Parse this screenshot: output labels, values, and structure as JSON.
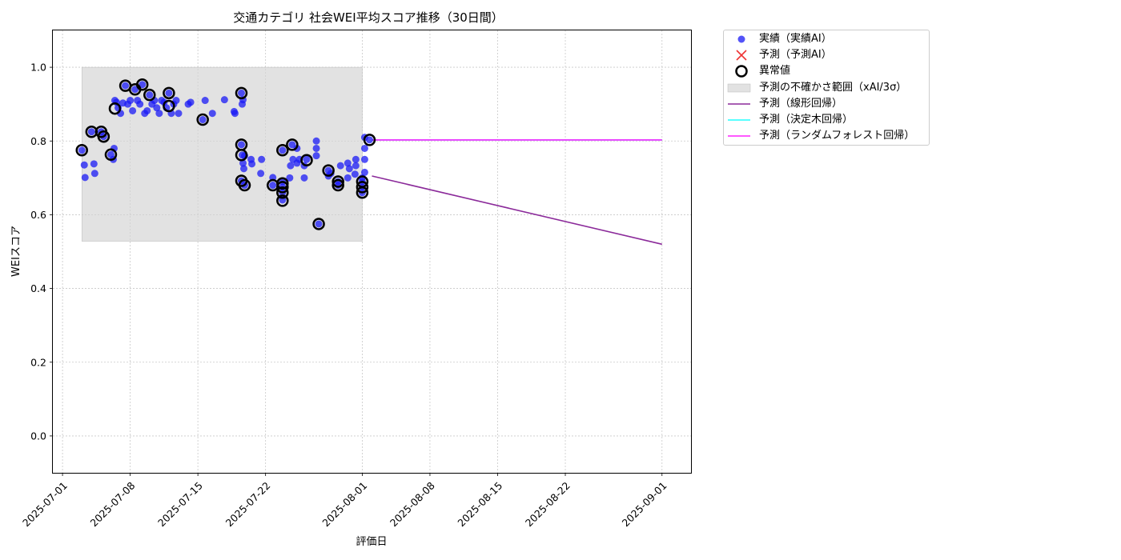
{
  "chart_data": {
    "type": "scatter",
    "title": "交通カテゴリ 社会WEI平均スコア推移（30日間）",
    "xlabel": "評価日",
    "ylabel": "WEIスコア",
    "xlim": [
      "2025-06-30",
      "2025-09-04"
    ],
    "ylim": [
      -0.1,
      1.1
    ],
    "grid": true,
    "legend_position": "outside-right-top",
    "x_ticks": [
      "2025-07-01",
      "2025-07-08",
      "2025-07-15",
      "2025-07-22",
      "2025-08-01",
      "2025-08-08",
      "2025-08-15",
      "2025-08-22",
      "2025-09-01"
    ],
    "y_ticks": [
      "0.0",
      "0.2",
      "0.4",
      "0.6",
      "0.8",
      "1.0"
    ],
    "legend": {
      "actual": "実績（実績AI）",
      "predicted": "予測（予測AI）",
      "anomaly": "異常値",
      "band": "予測の不確かさ範囲（xAI/3σ）",
      "linear": "予測（線形回帰）",
      "tree": "予測（決定木回帰）",
      "forest": "予測（ランダムフォレスト回帰）"
    },
    "colors": {
      "actual": "#1a1af5",
      "predicted": "#ee3333",
      "anomaly": "#000000",
      "band": "#d3d3d3",
      "linear": "#8b2a9a",
      "tree": "#22ffff",
      "forest": "#ff22ff"
    },
    "uncertainty_band": {
      "x_start": "2025-07-03 00:00",
      "x_end": "2025-08-01 00:00",
      "y_low": 0.528,
      "y_high": 1.0
    },
    "series": [
      {
        "key": "actual",
        "points": [
          [
            "2025-07-03 00:00",
            0.775
          ],
          [
            "2025-07-03 06:00",
            0.735
          ],
          [
            "2025-07-03 08:00",
            0.701
          ],
          [
            "2025-07-04 00:00",
            0.825
          ],
          [
            "2025-07-04 06:00",
            0.738
          ],
          [
            "2025-07-04 08:00",
            0.712
          ],
          [
            "2025-07-05 00:00",
            0.825
          ],
          [
            "2025-07-05 06:00",
            0.812
          ],
          [
            "2025-07-06 00:00",
            0.763
          ],
          [
            "2025-07-06 06:00",
            0.75
          ],
          [
            "2025-07-06 08:00",
            0.78
          ],
          [
            "2025-07-06 10:00",
            0.91
          ],
          [
            "2025-07-06 14:00",
            0.905
          ],
          [
            "2025-07-06 18:00",
            0.89
          ],
          [
            "2025-07-07 00:00",
            0.875
          ],
          [
            "2025-07-07 06:00",
            0.903
          ],
          [
            "2025-07-07 12:00",
            0.95
          ],
          [
            "2025-07-07 18:00",
            0.9
          ],
          [
            "2025-07-08 00:00",
            0.91
          ],
          [
            "2025-07-08 06:00",
            0.882
          ],
          [
            "2025-07-08 12:00",
            0.94
          ],
          [
            "2025-07-08 18:00",
            0.91
          ],
          [
            "2025-07-09 00:00",
            0.9
          ],
          [
            "2025-07-09 06:00",
            0.953
          ],
          [
            "2025-07-09 12:00",
            0.875
          ],
          [
            "2025-07-09 18:00",
            0.882
          ],
          [
            "2025-07-10 00:00",
            0.925
          ],
          [
            "2025-07-10 06:00",
            0.9
          ],
          [
            "2025-07-10 12:00",
            0.91
          ],
          [
            "2025-07-10 18:00",
            0.89
          ],
          [
            "2025-07-11 00:00",
            0.875
          ],
          [
            "2025-07-11 06:00",
            0.91
          ],
          [
            "2025-07-11 12:00",
            0.905
          ],
          [
            "2025-07-11 18:00",
            0.89
          ],
          [
            "2025-07-12 00:00",
            0.93
          ],
          [
            "2025-07-12 06:00",
            0.875
          ],
          [
            "2025-07-12 12:00",
            0.9
          ],
          [
            "2025-07-12 18:00",
            0.91
          ],
          [
            "2025-07-13 00:00",
            0.875
          ],
          [
            "2025-07-14 00:00",
            0.9
          ],
          [
            "2025-07-14 06:00",
            0.905
          ],
          [
            "2025-07-15 12:00",
            0.858
          ],
          [
            "2025-07-15 18:00",
            0.91
          ],
          [
            "2025-07-16 12:00",
            0.875
          ],
          [
            "2025-07-17 18:00",
            0.912
          ],
          [
            "2025-07-18 18:00",
            0.88
          ],
          [
            "2025-07-18 20:00",
            0.875
          ],
          [
            "2025-07-19 12:00",
            0.93
          ],
          [
            "2025-07-19 14:00",
            0.9
          ],
          [
            "2025-07-19 16:00",
            0.912
          ],
          [
            "2025-07-19 12:00",
            0.79
          ],
          [
            "2025-07-19 14:00",
            0.762
          ],
          [
            "2025-07-19 16:00",
            0.74
          ],
          [
            "2025-07-19 18:00",
            0.725
          ],
          [
            "2025-07-19 20:00",
            0.76
          ],
          [
            "2025-07-19 12:00",
            0.692
          ],
          [
            "2025-07-19 20:00",
            0.68
          ],
          [
            "2025-07-20 12:00",
            0.75
          ],
          [
            "2025-07-20 14:00",
            0.738
          ],
          [
            "2025-07-21 12:00",
            0.712
          ],
          [
            "2025-07-21 14:00",
            0.75
          ],
          [
            "2025-07-22 18:00",
            0.701
          ],
          [
            "2025-07-22 18:00",
            0.68
          ],
          [
            "2025-07-23 18:00",
            0.775
          ],
          [
            "2025-07-23 18:00",
            0.69
          ],
          [
            "2025-07-23 18:00",
            0.675
          ],
          [
            "2025-07-23 18:00",
            0.66
          ],
          [
            "2025-07-23 18:00",
            0.64
          ],
          [
            "2025-07-24 12:00",
            0.7
          ],
          [
            "2025-07-24 14:00",
            0.733
          ],
          [
            "2025-07-24 18:00",
            0.79
          ],
          [
            "2025-07-24 20:00",
            0.75
          ],
          [
            "2025-07-25 06:00",
            0.78
          ],
          [
            "2025-07-25 06:00",
            0.74
          ],
          [
            "2025-07-25 12:00",
            0.75
          ],
          [
            "2025-07-26 00:00",
            0.733
          ],
          [
            "2025-07-26 00:00",
            0.7
          ],
          [
            "2025-07-26 06:00",
            0.75
          ],
          [
            "2025-07-27 06:00",
            0.8
          ],
          [
            "2025-07-27 06:00",
            0.78
          ],
          [
            "2025-07-27 06:00",
            0.76
          ],
          [
            "2025-07-27 12:00",
            0.575
          ],
          [
            "2025-07-28 12:00",
            0.72
          ],
          [
            "2025-07-28 12:00",
            0.705
          ],
          [
            "2025-07-28 18:00",
            0.712
          ],
          [
            "2025-07-29 12:00",
            0.69
          ],
          [
            "2025-07-29 12:00",
            0.68
          ],
          [
            "2025-07-29 18:00",
            0.733
          ],
          [
            "2025-07-30 12:00",
            0.7
          ],
          [
            "2025-07-30 12:00",
            0.74
          ],
          [
            "2025-07-30 16:00",
            0.725
          ],
          [
            "2025-07-31 06:00",
            0.71
          ],
          [
            "2025-07-31 08:00",
            0.75
          ],
          [
            "2025-07-31 08:00",
            0.733
          ],
          [
            "2025-08-01 00:00",
            0.69
          ],
          [
            "2025-08-01 00:00",
            0.675
          ],
          [
            "2025-08-01 00:00",
            0.66
          ],
          [
            "2025-08-01 00:00",
            0.7
          ],
          [
            "2025-08-01 06:00",
            0.715
          ],
          [
            "2025-08-01 06:00",
            0.75
          ],
          [
            "2025-08-01 06:00",
            0.78
          ],
          [
            "2025-08-01 06:00",
            0.81
          ],
          [
            "2025-08-01 18:00",
            0.803
          ]
        ]
      },
      {
        "key": "anomaly",
        "points": [
          [
            "2025-07-03 00:00",
            0.775
          ],
          [
            "2025-07-04 00:00",
            0.825
          ],
          [
            "2025-07-05 00:00",
            0.825
          ],
          [
            "2025-07-05 06:00",
            0.812
          ],
          [
            "2025-07-06 00:00",
            0.763
          ],
          [
            "2025-07-06 10:00",
            0.888
          ],
          [
            "2025-07-07 12:00",
            0.95
          ],
          [
            "2025-07-08 12:00",
            0.94
          ],
          [
            "2025-07-09 06:00",
            0.953
          ],
          [
            "2025-07-10 00:00",
            0.925
          ],
          [
            "2025-07-12 00:00",
            0.93
          ],
          [
            "2025-07-12 00:00",
            0.895
          ],
          [
            "2025-07-15 12:00",
            0.858
          ],
          [
            "2025-07-19 12:00",
            0.93
          ],
          [
            "2025-07-19 12:00",
            0.79
          ],
          [
            "2025-07-19 12:00",
            0.762
          ],
          [
            "2025-07-19 12:00",
            0.692
          ],
          [
            "2025-07-19 20:00",
            0.68
          ],
          [
            "2025-07-22 18:00",
            0.68
          ],
          [
            "2025-07-23 18:00",
            0.775
          ],
          [
            "2025-07-23 18:00",
            0.685
          ],
          [
            "2025-07-23 18:00",
            0.675
          ],
          [
            "2025-07-23 18:00",
            0.66
          ],
          [
            "2025-07-23 18:00",
            0.638
          ],
          [
            "2025-07-24 18:00",
            0.79
          ],
          [
            "2025-07-26 06:00",
            0.748
          ],
          [
            "2025-07-27 12:00",
            0.575
          ],
          [
            "2025-07-28 12:00",
            0.72
          ],
          [
            "2025-07-29 12:00",
            0.69
          ],
          [
            "2025-07-29 12:00",
            0.68
          ],
          [
            "2025-08-01 00:00",
            0.69
          ],
          [
            "2025-08-01 00:00",
            0.675
          ],
          [
            "2025-08-01 00:00",
            0.66
          ],
          [
            "2025-08-01 18:00",
            0.803
          ]
        ]
      },
      {
        "key": "linear",
        "points": [
          [
            "2025-08-02 00:00",
            0.705
          ],
          [
            "2025-09-01 00:00",
            0.52
          ]
        ]
      },
      {
        "key": "tree",
        "points": [
          [
            "2025-08-02 00:00",
            0.803
          ],
          [
            "2025-09-01 00:00",
            0.803
          ]
        ]
      },
      {
        "key": "forest",
        "points": [
          [
            "2025-08-02 00:00",
            0.803
          ],
          [
            "2025-09-01 00:00",
            0.803
          ]
        ]
      }
    ]
  }
}
